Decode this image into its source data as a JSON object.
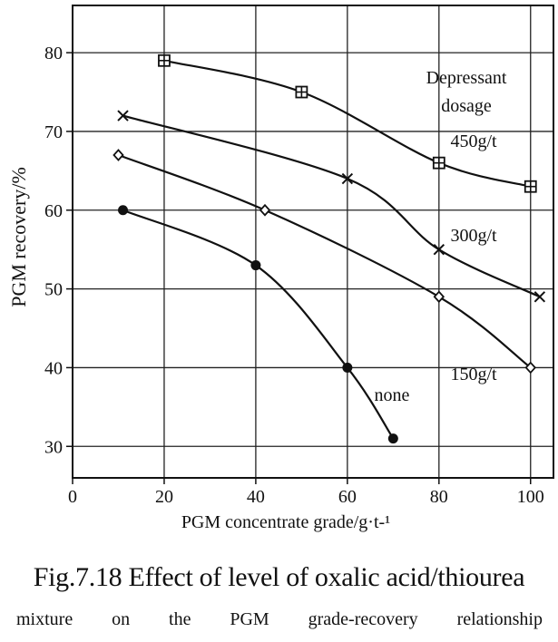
{
  "chart_data": {
    "type": "line",
    "xlabel": "PGM concentrate grade/g·t-¹",
    "ylabel": "PGM recovery/%",
    "xlim": [
      0,
      105
    ],
    "ylim": [
      26,
      86
    ],
    "x_ticks": [
      0,
      20,
      40,
      60,
      80,
      100
    ],
    "y_ticks": [
      30,
      40,
      50,
      60,
      70,
      80
    ],
    "grid": true,
    "legend_title": "Depressant dosage",
    "series": [
      {
        "name": "450g/t",
        "marker": "boxed-plus",
        "points": [
          [
            20,
            79
          ],
          [
            50,
            75
          ],
          [
            80,
            66
          ],
          [
            100,
            63
          ]
        ]
      },
      {
        "name": "300g/t",
        "marker": "x",
        "points": [
          [
            11,
            72
          ],
          [
            60,
            64
          ],
          [
            80,
            55
          ],
          [
            102,
            49
          ]
        ]
      },
      {
        "name": "150g/t",
        "marker": "diamond",
        "points": [
          [
            10,
            67
          ],
          [
            42,
            60
          ],
          [
            80,
            49
          ],
          [
            100,
            40
          ]
        ]
      },
      {
        "name": "none",
        "marker": "filled-circle",
        "points": [
          [
            11,
            60
          ],
          [
            40,
            53
          ],
          [
            60,
            40
          ],
          [
            70,
            31
          ]
        ]
      }
    ]
  },
  "caption": {
    "line1": "Fig.7.18 Effect of level of oxalic acid/thiourea",
    "line2": "mixture on the PGM grade-recovery relationship"
  }
}
